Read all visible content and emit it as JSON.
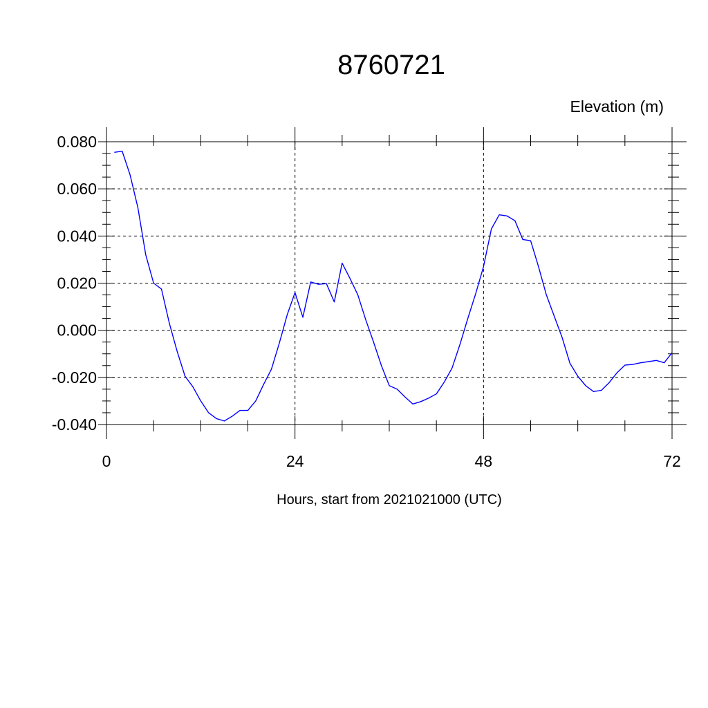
{
  "chart_data": {
    "type": "line",
    "title": "8760721",
    "ylabel": "Elevation (m)",
    "xlabel": "Hours, start from 2021021000 (UTC)",
    "xlim": [
      0,
      72
    ],
    "ylim": [
      -0.04,
      0.08
    ],
    "xticks": [
      0,
      24,
      48,
      72
    ],
    "xtick_labels": [
      "0",
      "24",
      "48",
      "72"
    ],
    "yticks": [
      0.08,
      0.06,
      0.04,
      0.02,
      0.0,
      -0.02,
      -0.04
    ],
    "ytick_labels": [
      "0.080",
      "0.060",
      "0.040",
      "0.020",
      "0.000",
      "-0.020",
      "-0.040"
    ],
    "grid": true,
    "series_color": "#0000ff",
    "series": [
      {
        "x": [
          1,
          2,
          3,
          4,
          5,
          6,
          7,
          8,
          9,
          10,
          11,
          12,
          13,
          14,
          15,
          16,
          17,
          18,
          19,
          20,
          21,
          22,
          23,
          24,
          25,
          26,
          27,
          28,
          29,
          30,
          31,
          32,
          33,
          34,
          35,
          36,
          37,
          38,
          39,
          40,
          41,
          42,
          43,
          44,
          45,
          46,
          47,
          48,
          49,
          50,
          51,
          52,
          53,
          54,
          55,
          56,
          57,
          58,
          59,
          60,
          61,
          62,
          63,
          64,
          65,
          66,
          67,
          68,
          69,
          70,
          71,
          72
        ],
        "y": [
          0.0755,
          0.076,
          0.066,
          0.052,
          0.032,
          0.02,
          0.0175,
          0.003,
          -0.009,
          -0.0195,
          -0.024,
          -0.03,
          -0.035,
          -0.0375,
          -0.0385,
          -0.0365,
          -0.034,
          -0.034,
          -0.03,
          -0.023,
          -0.0165,
          -0.0055,
          0.0065,
          0.016,
          0.0055,
          0.0205,
          0.0195,
          0.0198,
          0.012,
          0.0285,
          0.022,
          0.015,
          0.0045,
          -0.005,
          -0.015,
          -0.0235,
          -0.025,
          -0.0283,
          -0.0313,
          -0.0303,
          -0.0288,
          -0.027,
          -0.022,
          -0.016,
          -0.006,
          0.005,
          0.0155,
          0.027,
          0.043,
          0.049,
          0.0485,
          0.0465,
          0.0385,
          0.038,
          0.027,
          0.015,
          0.006,
          -0.003,
          -0.014,
          -0.0195,
          -0.0235,
          -0.026,
          -0.0255,
          -0.0222,
          -0.018,
          -0.0148,
          -0.0145,
          -0.0138,
          -0.0133,
          -0.0128,
          -0.0138,
          -0.0095
        ]
      }
    ]
  }
}
